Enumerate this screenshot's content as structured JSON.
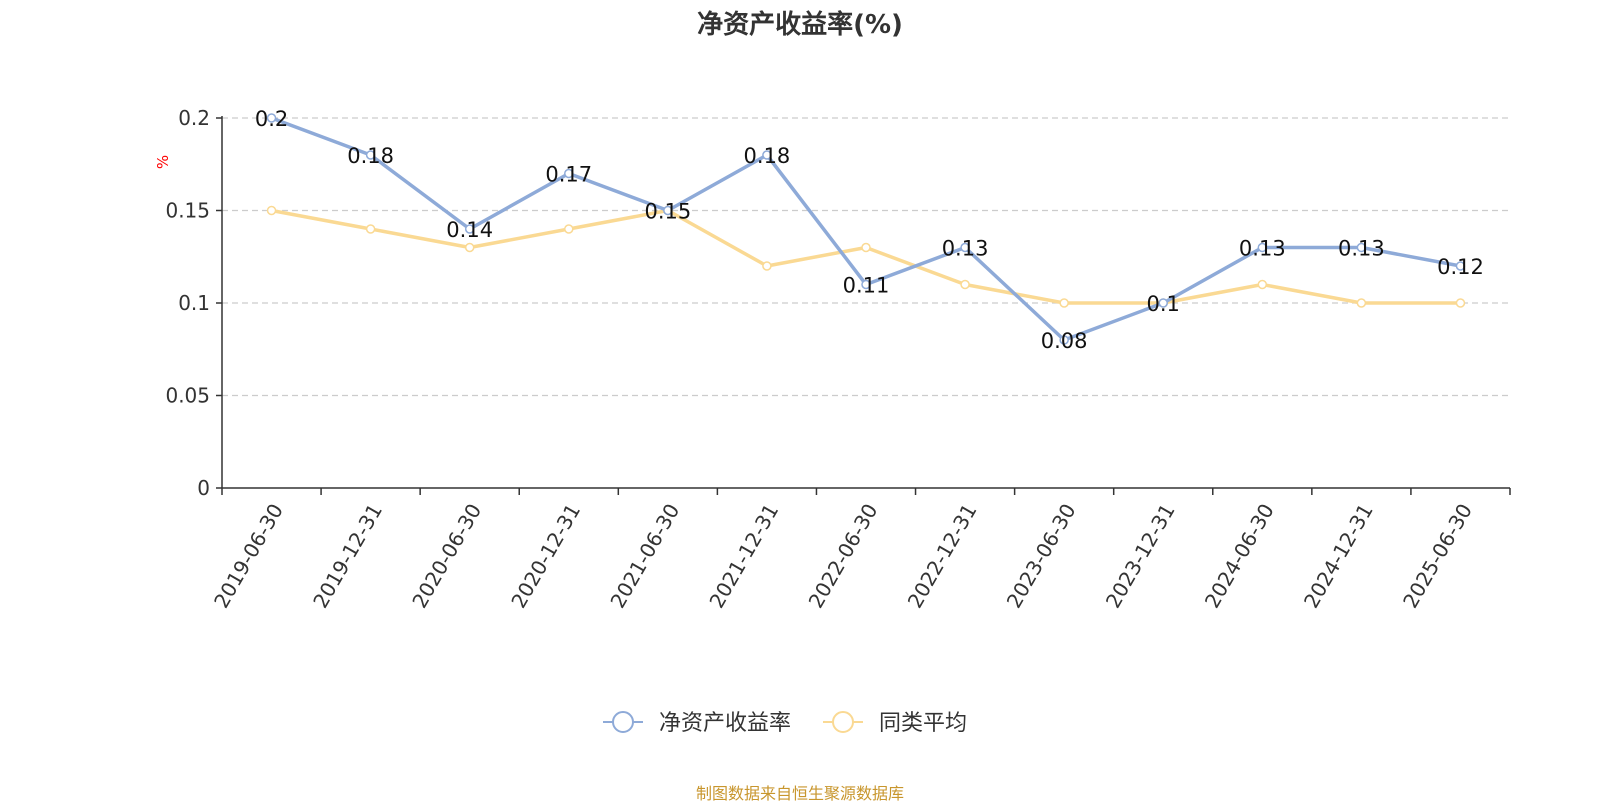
{
  "colors": {
    "series_main": "#8eaad8",
    "series_avg": "#fad993",
    "axis": "#333333",
    "grid": "#cccccc",
    "unit": "#ff0000",
    "source": "#c8962d"
  },
  "chart_data": {
    "type": "line",
    "title": "净资产收益率(%)",
    "ylabel": "%",
    "xlabel": "",
    "ylim": [
      0,
      0.2
    ],
    "yticks": [
      "0",
      "0.05",
      "0.1",
      "0.15",
      "0.2"
    ],
    "grid": true,
    "legend_position": "bottom-center",
    "categories": [
      "2019-06-30",
      "2019-12-31",
      "2020-06-30",
      "2020-12-31",
      "2021-06-30",
      "2021-12-31",
      "2022-06-30",
      "2022-12-31",
      "2023-06-30",
      "2023-12-31",
      "2024-06-30",
      "2024-12-31",
      "2025-06-30"
    ],
    "series": [
      {
        "name": "净资产收益率",
        "values": [
          0.2,
          0.18,
          0.14,
          0.17,
          0.15,
          0.18,
          0.11,
          0.13,
          0.08,
          0.1,
          0.13,
          0.13,
          0.12
        ],
        "data_labels": [
          "0.2",
          "0.18",
          "0.14",
          "0.17",
          "0.15",
          "0.18",
          "0.11",
          "0.13",
          "0.08",
          "0.1",
          "0.13",
          "0.13",
          "0.12"
        ]
      },
      {
        "name": "同类平均",
        "values": [
          0.15,
          0.14,
          0.13,
          0.14,
          0.15,
          0.12,
          0.13,
          0.11,
          0.1,
          0.1,
          0.11,
          0.1,
          0.1
        ]
      }
    ]
  },
  "footer": {
    "source": "制图数据来自恒生聚源数据库"
  }
}
